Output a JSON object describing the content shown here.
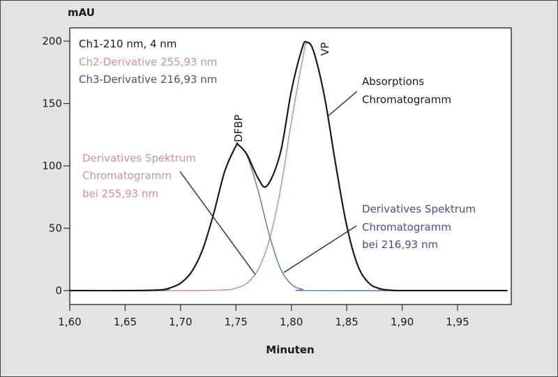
{
  "chart_data": {
    "type": "line",
    "title": "",
    "xlabel": "Minuten",
    "ylabel": "mAU",
    "xlim": [
      1.6,
      1.995
    ],
    "ylim": [
      -12,
      210
    ],
    "grid": false,
    "x_ticks": [
      1.6,
      1.65,
      1.7,
      1.75,
      1.8,
      1.85,
      1.9,
      1.95
    ],
    "x_tick_labels": [
      "1,60",
      "1,65",
      "1,70",
      "1,75",
      "1,80",
      "1,85",
      "1,90",
      "1,95"
    ],
    "y_ticks": [
      0,
      50,
      100,
      150,
      200
    ],
    "y_tick_labels": [
      "0",
      "50",
      "100",
      "150",
      "200"
    ],
    "legend_position": "top-left inside",
    "legend": [
      {
        "label": "Ch1-210 nm, 4 nm",
        "color": "#1a1a1a"
      },
      {
        "label": "Ch2-Derivative 255,93 nm",
        "color": "#c98fb0"
      },
      {
        "label": "Ch3-Derivative 216,93 nm",
        "color": "#4f4a8c"
      }
    ],
    "series": [
      {
        "name": "Ch1-210 nm, 4 nm (Absorptions Chromatogramm)",
        "color": "#1a1a1a",
        "x": [
          1.6,
          1.65,
          1.68,
          1.69,
          1.7,
          1.71,
          1.72,
          1.73,
          1.74,
          1.75,
          1.752,
          1.76,
          1.77,
          1.778,
          1.79,
          1.8,
          1.81,
          1.814,
          1.82,
          1.83,
          1.84,
          1.85,
          1.86,
          1.87,
          1.88,
          1.89,
          1.9,
          1.95,
          1.995
        ],
        "values": [
          0,
          0,
          0.5,
          2,
          6,
          15,
          33,
          62,
          96,
          116,
          117,
          109,
          90,
          84,
          110,
          160,
          195,
          199,
          192,
          155,
          101,
          52,
          20,
          6,
          1.5,
          0.3,
          0,
          0,
          0
        ]
      },
      {
        "name": "Ch2-Derivative 255,93 nm (Derivatives Spektrum Chromatogramm bei 255,93 nm)",
        "color": "#c98fb0",
        "x": [
          1.6,
          1.7,
          1.74,
          1.75,
          1.76,
          1.77,
          1.78,
          1.79,
          1.8,
          1.81,
          1.814,
          1.82,
          1.83,
          1.84,
          1.85,
          1.86,
          1.87,
          1.88,
          1.89,
          1.995
        ],
        "values": [
          0,
          0,
          0.5,
          2,
          6,
          17,
          40,
          80,
          135,
          185,
          199,
          192,
          155,
          101,
          52,
          20,
          6,
          1.5,
          0,
          0
        ]
      },
      {
        "name": "Ch3-Derivative 216,93 nm (Derivatives Spektrum Chromatogramm bei 216,93 nm)",
        "color": "#4f4a8c",
        "x": [
          1.6,
          1.68,
          1.69,
          1.7,
          1.71,
          1.72,
          1.73,
          1.74,
          1.75,
          1.752,
          1.76,
          1.77,
          1.78,
          1.79,
          1.8,
          1.81,
          1.82,
          1.995
        ],
        "values": [
          0,
          0,
          2,
          6,
          15,
          33,
          62,
          96,
          116,
          117,
          108,
          80,
          45,
          18,
          5,
          1,
          0,
          0
        ]
      }
    ],
    "annotations": [
      {
        "text": "DFBP",
        "x": 1.752,
        "y": 117,
        "rotated": true,
        "color": "#1a1a1a"
      },
      {
        "text": "VP",
        "x": 1.814,
        "y": 199,
        "rotated": true,
        "color": "#1a1a1a"
      },
      {
        "text": "Absorptions Chromatogramm",
        "color": "#1a1a1a"
      },
      {
        "text": "Derivatives Spektrum Chromatogramm bei 255,93 nm",
        "color": "#c98fb0"
      },
      {
        "text": "Derivatives Spektrum Chromatogramm bei 216,93 nm",
        "color": "#4f4a8c"
      }
    ]
  },
  "labels": {
    "y_unit": "mAU",
    "x_title": "Minuten",
    "legend_1": "Ch1-210 nm, 4 nm",
    "legend_2": "Ch2-Derivative 255,93 nm",
    "legend_3": "Ch3-Derivative 216,93 nm",
    "peak_dfbp": "DFBP",
    "peak_vp": "VP",
    "ann_abs_1": "Absorptions",
    "ann_abs_2": "Chromatogramm",
    "ann_pink_1": "Derivatives Spektrum",
    "ann_pink_2": "Chromatogramm",
    "ann_pink_3": "bei 255,93 nm",
    "ann_blue_1": "Derivatives Spektrum",
    "ann_blue_2": "Chromatogramm",
    "ann_blue_3": "bei 216,93 nm"
  },
  "colors": {
    "background": "#e3e3e1",
    "plot_bg": "#ffffff",
    "ch1": "#1a1a1a",
    "ch2": "#c98fb0",
    "ch3": "#4f4a8c",
    "ch3_line": "#6b82a8"
  }
}
